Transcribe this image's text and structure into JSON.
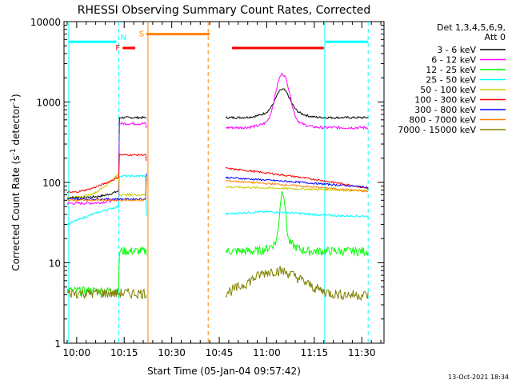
{
  "chart_data": {
    "type": "line",
    "title": "RHESSI Observing Summary Count Rates, Corrected",
    "xlabel": "Start Time (05-Jan-04 09:57:42)",
    "ylabel_main": "Corrected Count Rate (s",
    "ylabel_sup1": "-1",
    "ylabel_mid": " detector",
    "ylabel_sup2": "-1",
    "ylabel_end": ")",
    "y_scale": "log",
    "ylim": [
      1,
      10000
    ],
    "xlim_minutes": [
      -4,
      97
    ],
    "x_tick_minutes": [
      0,
      15,
      30,
      45,
      60,
      75,
      90
    ],
    "x_tick_labels": [
      "10:00",
      "10:15",
      "10:30",
      "10:45",
      "11:00",
      "11:15",
      "11:30"
    ],
    "y_ticks": [
      1,
      10,
      100,
      1000,
      10000
    ],
    "y_tick_labels": [
      "1",
      "10",
      "100",
      "1000",
      "10000"
    ],
    "legend_header": [
      "Det 1,3,4,5,6,9,",
      "Att 0"
    ],
    "legend_position": "right",
    "series": [
      {
        "name": "3 - 6 keV",
        "color": "#000000"
      },
      {
        "name": "6 - 12 keV",
        "color": "#ff00ff"
      },
      {
        "name": "12 - 25 keV",
        "color": "#00ff00"
      },
      {
        "name": "25 - 50 keV",
        "color": "#00ffff"
      },
      {
        "name": "50 - 100 keV",
        "color": "#cccc00"
      },
      {
        "name": "100 - 300 keV",
        "color": "#ff0000"
      },
      {
        "name": "300 - 800 keV",
        "color": "#0000ff"
      },
      {
        "name": "800 - 7000 keV",
        "color": "#ff8000"
      },
      {
        "name": "7000 - 15000 keV",
        "color": "#808000"
      }
    ],
    "bars": [
      {
        "label": "",
        "color": "#00ffff",
        "level": 5600,
        "start": -2.5,
        "end": 12.5
      },
      {
        "label": "F",
        "color": "#ff0000",
        "level": 4700,
        "start": 14.5,
        "end": 18.5
      },
      {
        "label": "N",
        "color": "#00ffff",
        "level": null,
        "start": 13.5,
        "end": 13.5
      },
      {
        "label": "S",
        "color": "#ff8000",
        "level": 7000,
        "start": 22,
        "end": 42
      },
      {
        "label": "",
        "color": "#ff0000",
        "level": 4700,
        "start": 49,
        "end": 78
      },
      {
        "label": "",
        "color": "#00ffff",
        "level": 5600,
        "start": 78.5,
        "end": 92
      }
    ],
    "vertical_markers": [
      {
        "minute": -2.5,
        "color": "#00ffff",
        "style": "solid"
      },
      {
        "minute": 13.3,
        "color": "#00ffff",
        "style": "dashed"
      },
      {
        "minute": 22.5,
        "color": "#ff8000",
        "style": "solid"
      },
      {
        "minute": 41.5,
        "color": "#ff8000",
        "style": "dashed"
      },
      {
        "minute": 78.3,
        "color": "#00ffff",
        "style": "solid"
      },
      {
        "minute": 92,
        "color": "#00ffff",
        "style": "dashed"
      }
    ],
    "data_gaps_minutes": [
      [
        22,
        47
      ]
    ]
  },
  "footer_timestamp": "13-Oct-2021 18:34"
}
